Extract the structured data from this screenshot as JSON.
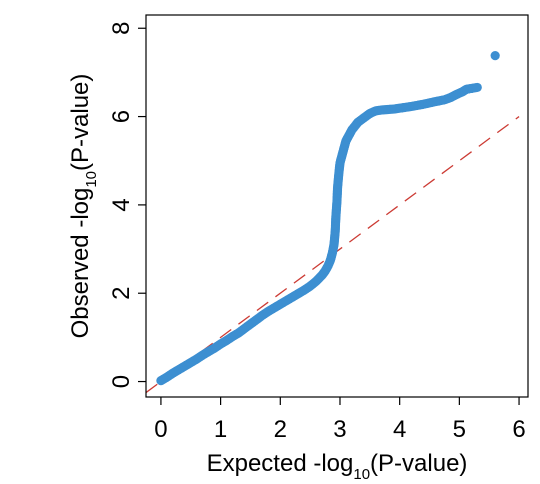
{
  "chart_data": {
    "type": "scatter",
    "title": "",
    "xlabel": {
      "prefix": "Expected -log",
      "subscript": "10",
      "suffix": "(P-value)"
    },
    "ylabel": {
      "prefix": "Observed -log",
      "subscript": "10",
      "suffix": "(P-value)"
    },
    "xlim": [
      -0.25,
      6.15
    ],
    "ylim": [
      -0.35,
      8.3
    ],
    "xticks": [
      0,
      1,
      2,
      3,
      4,
      5,
      6
    ],
    "yticks": [
      0,
      2,
      4,
      6,
      8
    ],
    "grid": false,
    "colors": {
      "points": "#3d8fd1",
      "reference_line": "#cc3b34",
      "frame": "#000000"
    },
    "reference_line": {
      "x": [
        -0.25,
        6.0
      ],
      "y": [
        -0.25,
        6.0
      ],
      "style": "dashed"
    },
    "series": [
      {
        "points": [
          [
            0.0,
            0.02
          ],
          [
            0.1,
            0.1
          ],
          [
            0.2,
            0.19
          ],
          [
            0.3,
            0.27
          ],
          [
            0.4,
            0.35
          ],
          [
            0.5,
            0.43
          ],
          [
            0.6,
            0.51
          ],
          [
            0.7,
            0.6
          ],
          [
            0.8,
            0.68
          ],
          [
            0.9,
            0.76
          ],
          [
            1.0,
            0.85
          ],
          [
            1.1,
            0.93
          ],
          [
            1.2,
            1.02
          ],
          [
            1.3,
            1.1
          ],
          [
            1.4,
            1.2
          ],
          [
            1.5,
            1.3
          ],
          [
            1.6,
            1.4
          ],
          [
            1.7,
            1.5
          ],
          [
            1.8,
            1.59
          ],
          [
            1.9,
            1.67
          ],
          [
            2.0,
            1.75
          ],
          [
            2.1,
            1.83
          ],
          [
            2.2,
            1.91
          ],
          [
            2.3,
            1.99
          ],
          [
            2.4,
            2.07
          ],
          [
            2.5,
            2.16
          ],
          [
            2.6,
            2.27
          ],
          [
            2.7,
            2.41
          ],
          [
            2.75,
            2.5
          ],
          [
            2.8,
            2.62
          ],
          [
            2.84,
            2.75
          ],
          [
            2.87,
            2.9
          ],
          [
            2.9,
            3.1
          ],
          [
            2.92,
            3.4
          ],
          [
            2.93,
            3.7
          ],
          [
            2.94,
            3.9
          ],
          [
            2.95,
            4.1
          ],
          [
            2.96,
            4.4
          ],
          [
            2.98,
            4.7
          ],
          [
            3.0,
            4.95
          ],
          [
            3.05,
            5.2
          ],
          [
            3.1,
            5.45
          ],
          [
            3.2,
            5.7
          ],
          [
            3.3,
            5.87
          ],
          [
            3.4,
            5.97
          ],
          [
            3.5,
            6.07
          ],
          [
            3.6,
            6.13
          ],
          [
            3.7,
            6.15
          ],
          [
            3.8,
            6.16
          ],
          [
            3.9,
            6.17
          ],
          [
            4.0,
            6.19
          ],
          [
            4.2,
            6.23
          ],
          [
            4.4,
            6.28
          ],
          [
            4.6,
            6.34
          ],
          [
            4.75,
            6.38
          ],
          [
            4.85,
            6.43
          ],
          [
            4.95,
            6.5
          ],
          [
            5.05,
            6.56
          ],
          [
            5.12,
            6.62
          ],
          [
            5.3,
            6.66
          ],
          [
            5.6,
            7.38
          ]
        ]
      }
    ]
  }
}
